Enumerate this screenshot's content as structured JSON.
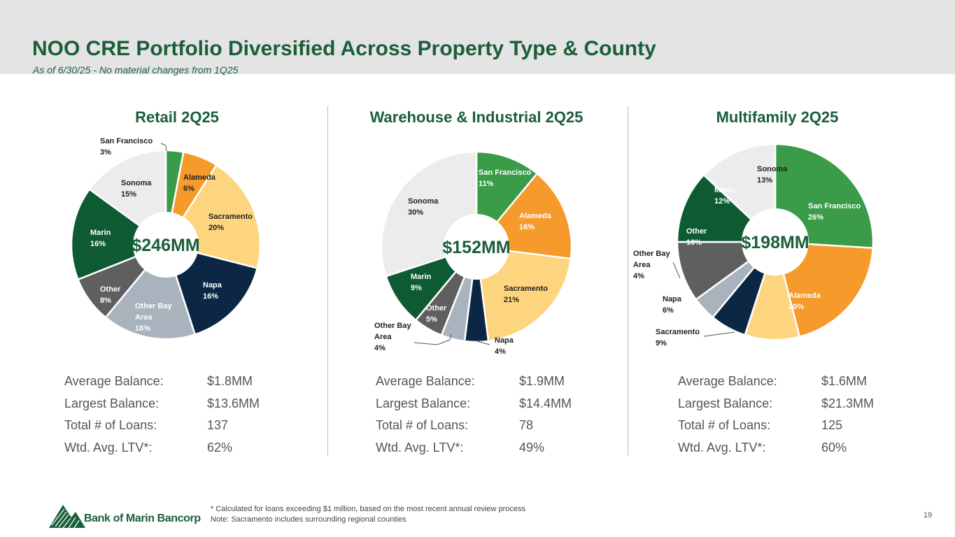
{
  "header": {
    "title": "NOO CRE Portfolio Diversified Across Property Type & County",
    "subtitle": "As of 6/30/25 - No material changes from 1Q25"
  },
  "colors": {
    "San Francisco": "#3a9b48",
    "Alameda": "#f59a2b",
    "Sacramento": "#fdd57e",
    "Napa": "#0b2744",
    "Other Bay Area": "#a9b3bd",
    "Other": "#5f5f5f",
    "Marin": "#0e5a32",
    "Sonoma": "#ececec",
    "brand": "#1b5e3a"
  },
  "chart_data": [
    {
      "type": "pie",
      "title": "Retail 2Q25",
      "center_label": "$246MM",
      "slices": [
        {
          "label": "San Francisco",
          "value": 3
        },
        {
          "label": "Alameda",
          "value": 6
        },
        {
          "label": "Sacramento",
          "value": 20
        },
        {
          "label": "Napa",
          "value": 16
        },
        {
          "label": "Other Bay Area",
          "value": 16
        },
        {
          "label": "Other",
          "value": 8
        },
        {
          "label": "Marin",
          "value": 16
        },
        {
          "label": "Sonoma",
          "value": 15
        }
      ],
      "stats": [
        {
          "label": "Average Balance:",
          "value": "$1.8MM"
        },
        {
          "label": "Largest Balance:",
          "value": "$13.6MM"
        },
        {
          "label": "Total # of Loans:",
          "value": "137"
        },
        {
          "label": "Wtd. Avg. LTV*:",
          "value": "62%"
        }
      ]
    },
    {
      "type": "pie",
      "title": "Warehouse & Industrial 2Q25",
      "center_label": "$152MM",
      "slices": [
        {
          "label": "San Francisco",
          "value": 11
        },
        {
          "label": "Alameda",
          "value": 16
        },
        {
          "label": "Sacramento",
          "value": 21
        },
        {
          "label": "Napa",
          "value": 4
        },
        {
          "label": "Other Bay Area",
          "value": 4
        },
        {
          "label": "Other",
          "value": 5
        },
        {
          "label": "Marin",
          "value": 9
        },
        {
          "label": "Sonoma",
          "value": 30
        }
      ],
      "stats": [
        {
          "label": "Average Balance:",
          "value": "$1.9MM"
        },
        {
          "label": "Largest Balance:",
          "value": "$14.4MM"
        },
        {
          "label": "Total # of Loans:",
          "value": "78"
        },
        {
          "label": "Wtd. Avg. LTV*:",
          "value": "49%"
        }
      ]
    },
    {
      "type": "pie",
      "title": "Multifamily 2Q25",
      "center_label": "$198MM",
      "slices": [
        {
          "label": "San Francisco",
          "value": 26
        },
        {
          "label": "Alameda",
          "value": 20
        },
        {
          "label": "Sacramento",
          "value": 9
        },
        {
          "label": "Napa",
          "value": 6
        },
        {
          "label": "Other Bay Area",
          "value": 4
        },
        {
          "label": "Other",
          "value": 10
        },
        {
          "label": "Marin",
          "value": 12
        },
        {
          "label": "Sonoma",
          "value": 13
        }
      ],
      "stats": [
        {
          "label": "Average Balance:",
          "value": "$1.6MM"
        },
        {
          "label": "Largest Balance:",
          "value": "$21.3MM"
        },
        {
          "label": "Total # of Loans:",
          "value": "125"
        },
        {
          "label": "Wtd. Avg. LTV*:",
          "value": "60%"
        }
      ]
    }
  ],
  "footer": {
    "logo_text": "Bank of Marin Bancorp",
    "footnote_1": "* Calculated for loans exceeding $1 million, based on the most recent annual review process",
    "footnote_2": "Note: Sacramento includes surrounding regional counties",
    "page_number": "19"
  }
}
